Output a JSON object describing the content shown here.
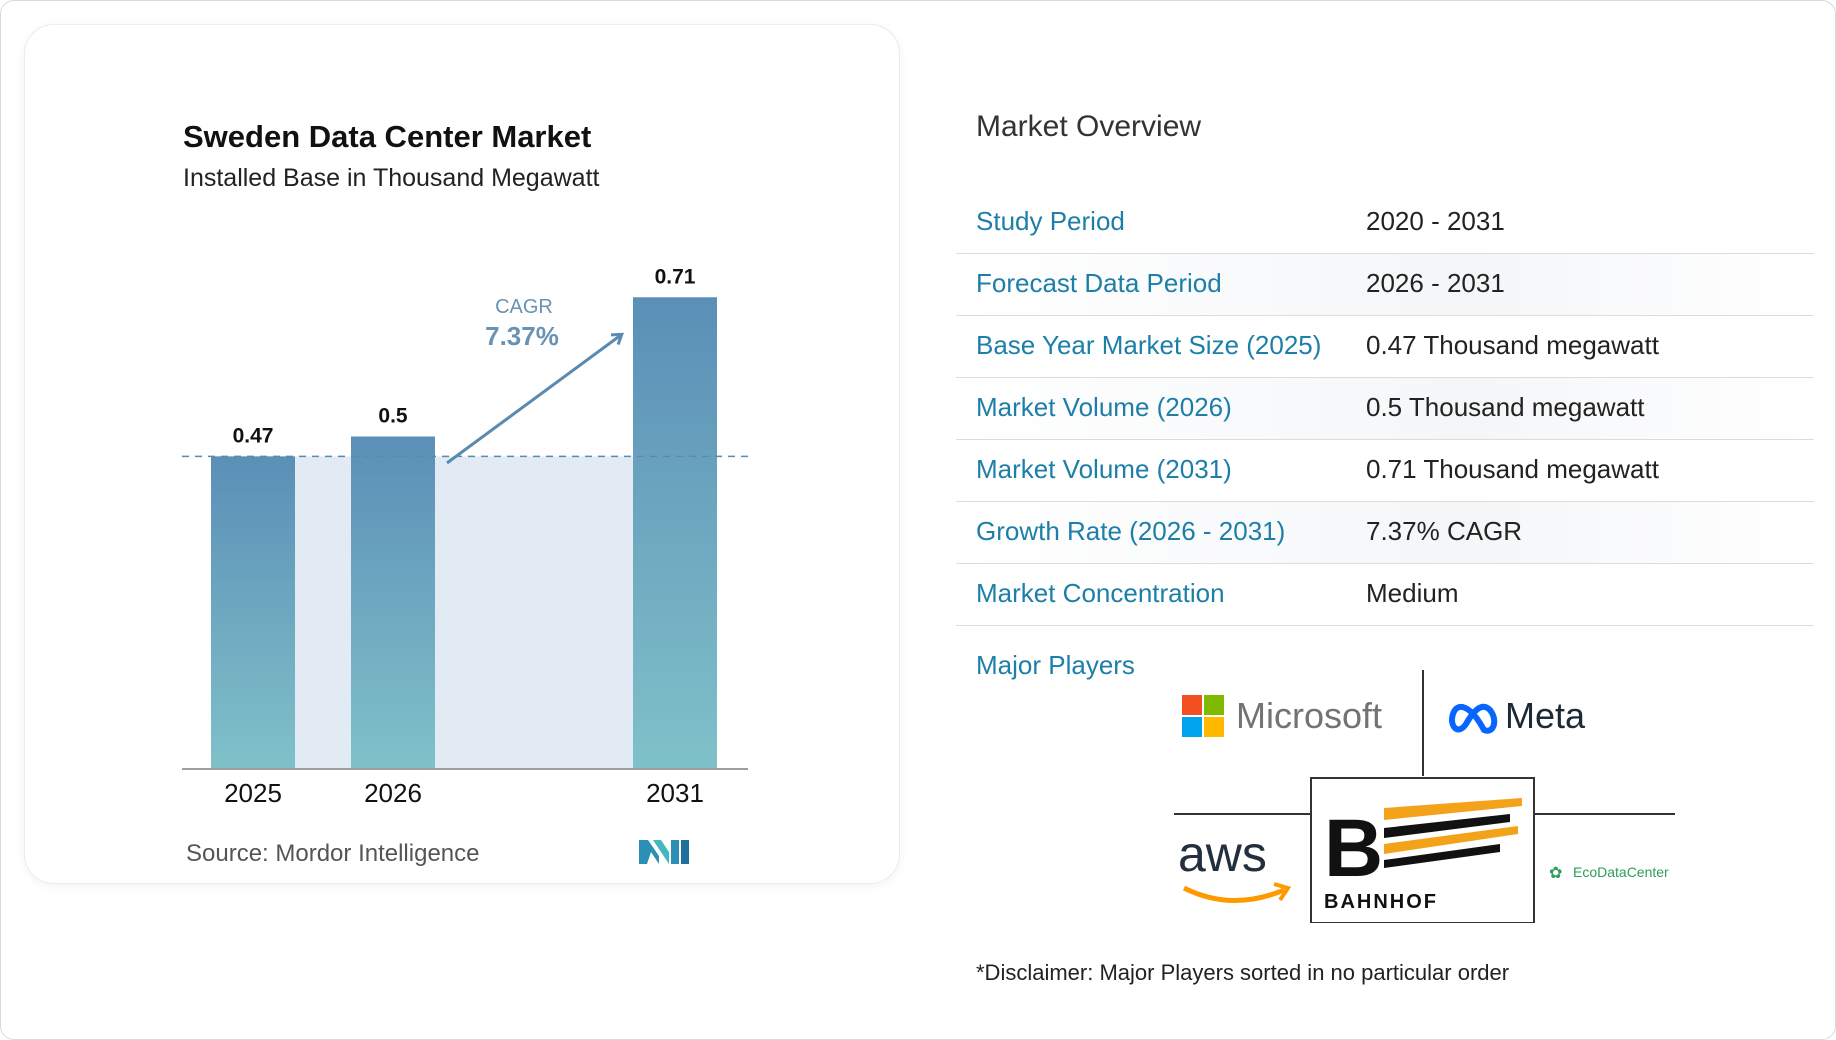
{
  "chart_data": {
    "type": "bar",
    "title": "Sweden Data Center Market",
    "subtitle": "Installed Base in Thousand Megawatt",
    "categories": [
      "2025",
      "2026",
      "2031"
    ],
    "values": [
      0.47,
      0.5,
      0.71
    ],
    "value_labels": [
      "0.47",
      "0.5",
      "0.71"
    ],
    "annotation": {
      "label": "CAGR",
      "value": "7.37%"
    },
    "colors": {
      "bar_top": "#5b8fb7",
      "bar_bottom": "#7fc1c9",
      "shade": "#e2ebf3",
      "arrow": "#5b8ab0",
      "axis": "#9e9e9e"
    }
  },
  "source": "Source:  Mordor Intelligence",
  "overview": {
    "title": "Market Overview",
    "rows": [
      {
        "label": "Study Period",
        "value": "2020 - 2031"
      },
      {
        "label": "Forecast Data Period",
        "value": "2026 - 2031"
      },
      {
        "label": "Base Year Market Size (2025)",
        "value": "0.47 Thousand megawatt"
      },
      {
        "label": "Market Volume (2026)",
        "value": "0.5 Thousand megawatt"
      },
      {
        "label": "Market Volume (2031)",
        "value": "0.71 Thousand megawatt"
      },
      {
        "label": "Growth Rate (2026 - 2031)",
        "value": "7.37% CAGR"
      },
      {
        "label": "Market Concentration",
        "value": "Medium"
      }
    ]
  },
  "players": {
    "title": "Major Players",
    "microsoft": "Microsoft",
    "meta": "Meta",
    "aws": "aws",
    "bahnhof": "BAHNHOF",
    "bahnhof_letter": "B",
    "ecodatacenter": "EcoDataCenter"
  },
  "disclaimer": "*Disclaimer: Major Players sorted in no particular order"
}
